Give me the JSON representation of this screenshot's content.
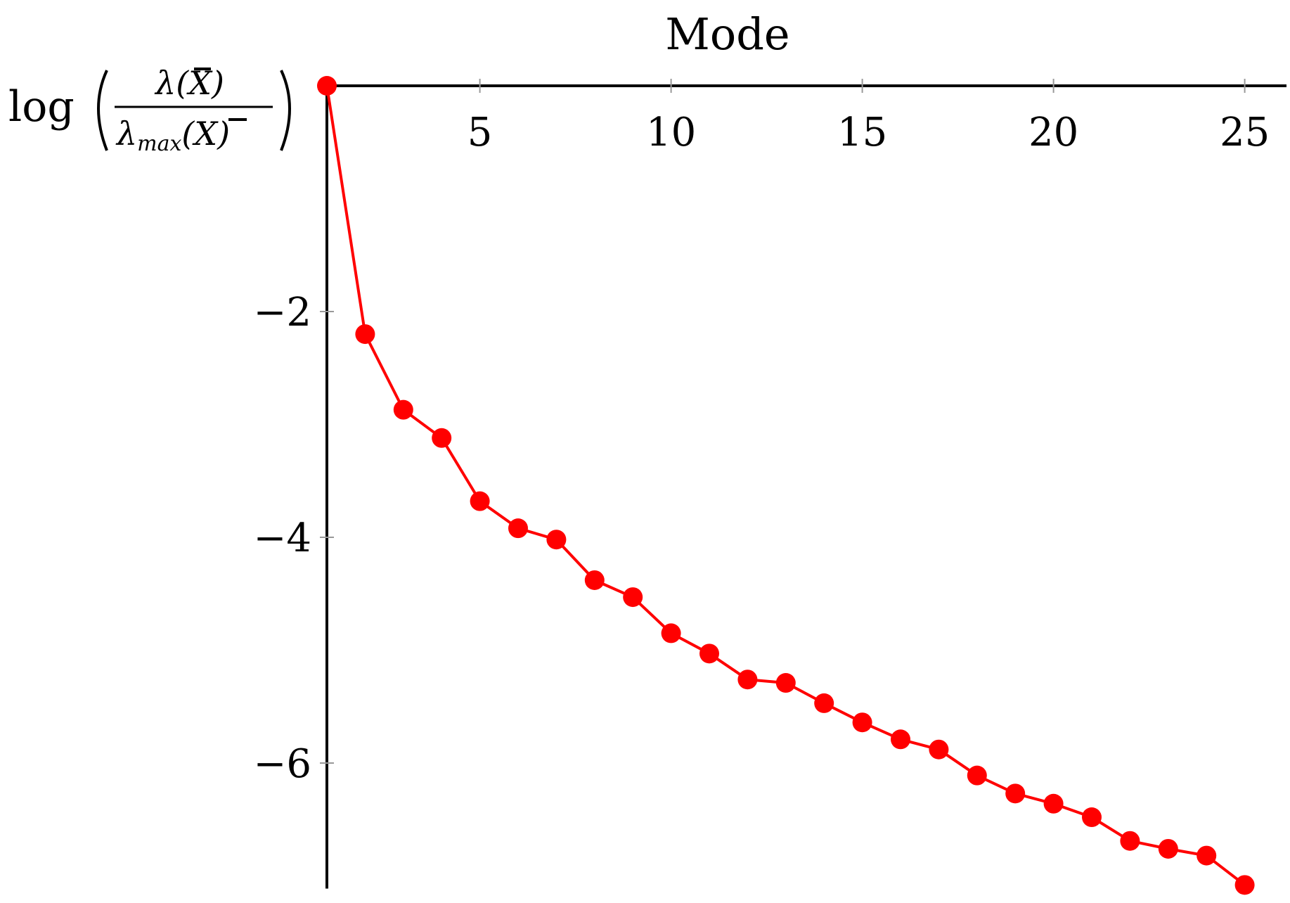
{
  "chart_data": {
    "type": "line",
    "title": "",
    "xlabel": "Mode",
    "ylabel": {
      "prefix": "log",
      "numerator": "λ(X)",
      "denominator_main": "λ",
      "denominator_sub": "max",
      "denominator_arg": "(X)"
    },
    "xlim": [
      1,
      26
    ],
    "ylim": [
      -7.1,
      0
    ],
    "xticks": [
      5,
      10,
      15,
      20,
      25
    ],
    "yticks": [
      -2,
      -4,
      -6
    ],
    "ytick_labels": [
      "−2",
      "−4",
      "−6"
    ],
    "x_axis_position": "top",
    "grid": false,
    "legend": "none",
    "series": [
      {
        "color": "#ff0000",
        "marker": "circle",
        "x": [
          1,
          2,
          3,
          4,
          5,
          6,
          7,
          8,
          9,
          10,
          11,
          12,
          13,
          14,
          15,
          16,
          17,
          18,
          19,
          20,
          21,
          22,
          23,
          24,
          25
        ],
        "y": [
          0,
          -2.2,
          -2.87,
          -3.12,
          -3.68,
          -3.92,
          -4.02,
          -4.38,
          -4.53,
          -4.85,
          -5.03,
          -5.26,
          -5.29,
          -5.47,
          -5.64,
          -5.79,
          -5.88,
          -6.11,
          -6.27,
          -6.36,
          -6.48,
          -6.69,
          -6.76,
          -6.82,
          -7.08
        ]
      }
    ]
  }
}
